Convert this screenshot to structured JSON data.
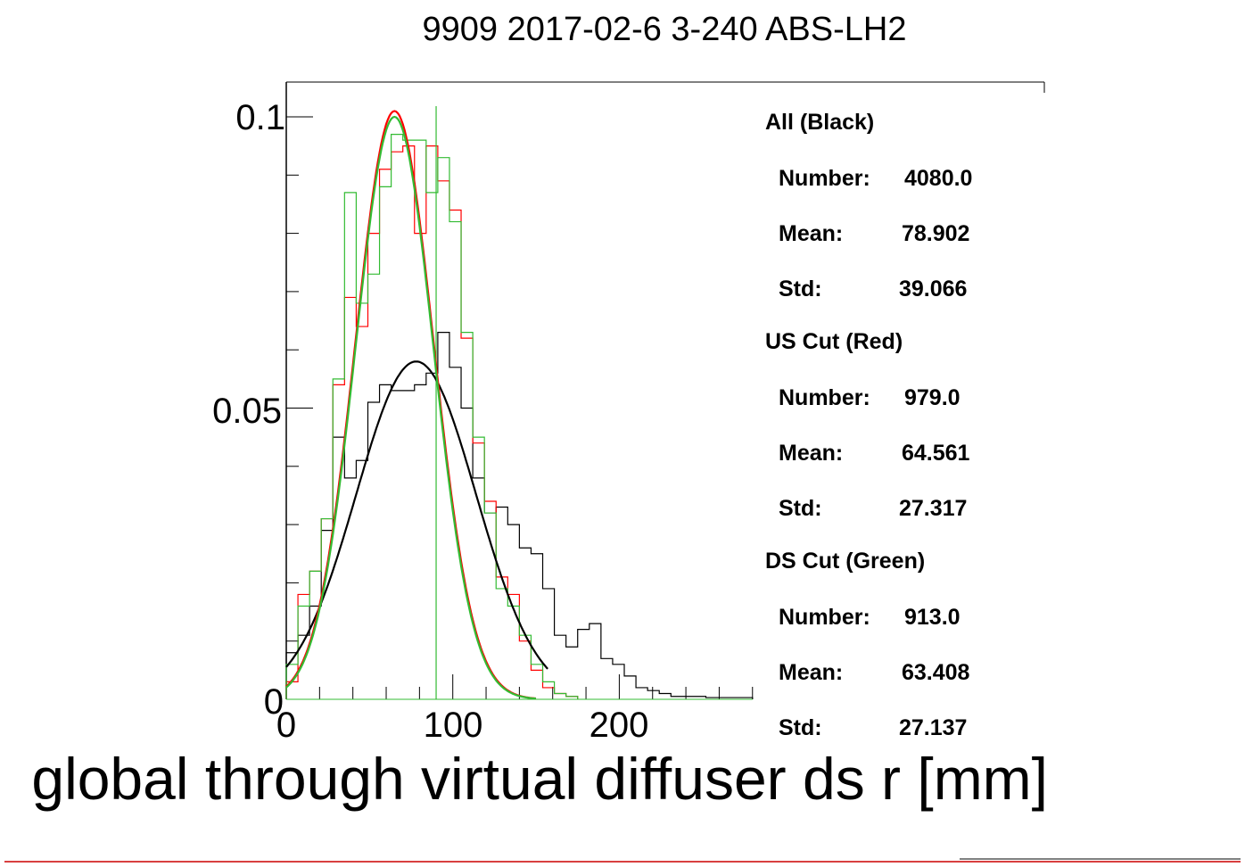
{
  "chart_data": {
    "type": "histogram",
    "title": "9909 2017-02-6 3-240 ABS-LH2",
    "xlabel": "global through virtual diffuser ds r [mm]",
    "ylabel": "",
    "xlim": [
      0,
      280
    ],
    "ylim": [
      0,
      0.1
    ],
    "x_ticks": [
      "0",
      "100",
      "200"
    ],
    "y_ticks": [
      "0",
      "0.05",
      "0.1"
    ],
    "bin_width": 7,
    "bin_edges_start": 0,
    "colors": {
      "all": "#000000",
      "us": "#ff0000",
      "ds": "#33bb33"
    },
    "series": [
      {
        "name": "All (Black)",
        "color": "#000000",
        "values": [
          0.008,
          0.011,
          0.016,
          0.029,
          0.045,
          0.038,
          0.041,
          0.051,
          0.054,
          0.053,
          0.053,
          0.054,
          0.056,
          0.063,
          0.057,
          0.05,
          0.038,
          0.032,
          0.033,
          0.03,
          0.026,
          0.025,
          0.019,
          0.011,
          0.009,
          0.012,
          0.013,
          0.007,
          0.006,
          0.004,
          0.002,
          0.0015,
          0.001,
          0.0005,
          0.0005,
          0.0005,
          0.0003,
          0.0003,
          0.0003,
          0.0003
        ]
      },
      {
        "name": "US Cut (Red)",
        "color": "#ff0000",
        "values": [
          0.003,
          0.018,
          0.022,
          0.031,
          0.054,
          0.069,
          0.064,
          0.08,
          0.091,
          0.094,
          0.095,
          0.08,
          0.095,
          0.089,
          0.084,
          0.062,
          0.044,
          0.034,
          0.021,
          0.018,
          0.01,
          0.005,
          0.002,
          0.001,
          0.0005
        ]
      },
      {
        "name": "DS Cut (Green)",
        "color": "#33bb33",
        "values": [
          0.006,
          0.016,
          0.022,
          0.031,
          0.055,
          0.087,
          0.068,
          0.073,
          0.088,
          0.097,
          0.096,
          0.096,
          0.087,
          0.093,
          0.082,
          0.063,
          0.045,
          0.032,
          0.019,
          0.016,
          0.011,
          0.006,
          0.003,
          0.001,
          0.0005
        ]
      }
    ],
    "fits": [
      {
        "name": "All (Black)",
        "color": "#000000",
        "amplitude": 0.058,
        "mean": 78,
        "sigma": 36,
        "x_range": [
          0,
          157
        ]
      },
      {
        "name": "US Cut (Red)",
        "color": "#ff0000",
        "amplitude": 0.101,
        "mean": 65,
        "sigma": 23.5,
        "x_range": [
          0,
          150
        ]
      },
      {
        "name": "DS Cut (Green)",
        "color": "#33bb33",
        "amplitude": 0.1,
        "mean": 65,
        "sigma": 23.3,
        "x_range": [
          0,
          150
        ]
      }
    ],
    "marker_line": {
      "x": 90,
      "color": "#33bb33"
    },
    "legend": {
      "placement": "right",
      "groups": [
        {
          "header": "All (Black)",
          "number_label": "Number:",
          "number": "4080.0",
          "mean_label": "Mean:",
          "mean": "78.902",
          "std_label": "Std:",
          "std": "39.066"
        },
        {
          "header": "US Cut (Red)",
          "number_label": "Number:",
          "number": "979.0",
          "mean_label": "Mean:",
          "mean": "64.561",
          "std_label": "Std:",
          "std": "27.317"
        },
        {
          "header": "DS Cut (Green)",
          "number_label": "Number:",
          "number": "913.0",
          "mean_label": "Mean:",
          "mean": "63.408",
          "std_label": "Std:",
          "std": "27.137"
        }
      ]
    }
  }
}
